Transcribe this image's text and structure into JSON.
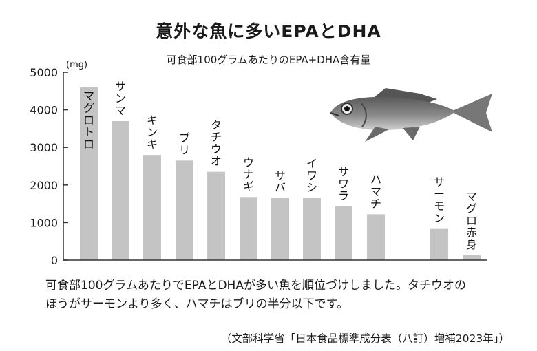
{
  "chart_data": {
    "type": "bar",
    "title": "意外な魚に多いEPAとDHA",
    "subtitle": "可食部100グラムあたりのEPA+DHA含有量",
    "unit": "(mg)",
    "categories": [
      "マグロトロ",
      "サンマ",
      "キンキ",
      "ブリ",
      "タチウオ",
      "ウナギ",
      "サバ",
      "イワシ",
      "サワラ",
      "ハマチ",
      "サーモン",
      "マグロ赤身"
    ],
    "values": [
      4600,
      3700,
      2800,
      2650,
      2350,
      1680,
      1650,
      1650,
      1430,
      1220,
      830,
      130
    ],
    "yticks": [
      0,
      1000,
      2000,
      3000,
      4000,
      5000
    ],
    "ylim": [
      0,
      5000
    ],
    "bar_color": "#c4c4c4"
  },
  "caption_lines": [
    "可食部100グラムあたりでEPAとDHAが多い魚を順位づけしました。タチウオの",
    "ほうがサーモンより多く、ハマチはブリの半分以下です。"
  ],
  "source": "（文部科学省「日本食品標準成分表（八訂）増補2023年」）"
}
